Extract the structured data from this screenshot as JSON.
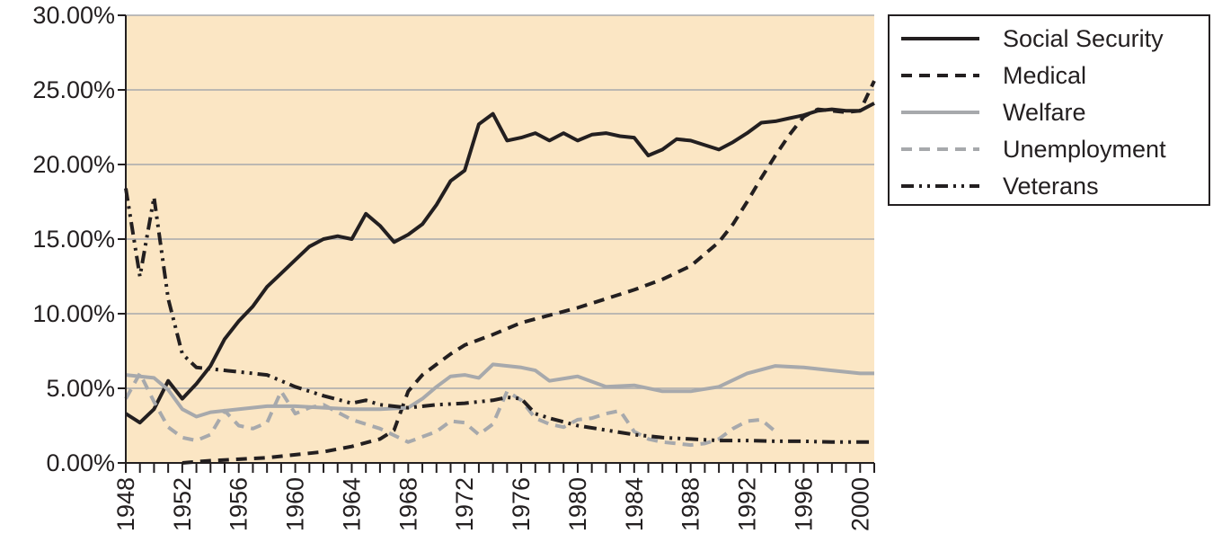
{
  "chart_data": {
    "type": "line",
    "title": "",
    "xlabel": "",
    "ylabel": "",
    "xlim": [
      1948,
      2001
    ],
    "ylim": [
      0,
      30
    ],
    "x_ticks": [
      1948,
      1952,
      1956,
      1960,
      1964,
      1968,
      1972,
      1976,
      1980,
      1984,
      1988,
      1992,
      1996,
      2000
    ],
    "y_ticks": [
      {
        "value": 0,
        "label": "0.00%"
      },
      {
        "value": 5,
        "label": "5.00%"
      },
      {
        "value": 10,
        "label": "10.00%"
      },
      {
        "value": 15,
        "label": "15.00%"
      },
      {
        "value": 20,
        "label": "20.00%"
      },
      {
        "value": 25,
        "label": "25.00%"
      },
      {
        "value": 30,
        "label": "30.00%"
      }
    ],
    "grid": "horizontal",
    "legend_position": "right",
    "plot_background": "#fbe6c4",
    "series": [
      {
        "name": "Social Security",
        "color": "#231f20",
        "style": "solid",
        "points": [
          [
            1948,
            3.3
          ],
          [
            1949,
            2.7
          ],
          [
            1950,
            3.6
          ],
          [
            1951,
            5.5
          ],
          [
            1952,
            4.3
          ],
          [
            1953,
            5.3
          ],
          [
            1954,
            6.5
          ],
          [
            1955,
            8.3
          ],
          [
            1956,
            9.5
          ],
          [
            1957,
            10.5
          ],
          [
            1958,
            11.8
          ],
          [
            1959,
            12.7
          ],
          [
            1960,
            13.6
          ],
          [
            1961,
            14.5
          ],
          [
            1962,
            15.0
          ],
          [
            1963,
            15.2
          ],
          [
            1964,
            15.0
          ],
          [
            1965,
            16.7
          ],
          [
            1966,
            15.9
          ],
          [
            1967,
            14.8
          ],
          [
            1968,
            15.3
          ],
          [
            1969,
            16.0
          ],
          [
            1970,
            17.3
          ],
          [
            1971,
            18.9
          ],
          [
            1972,
            19.6
          ],
          [
            1973,
            22.7
          ],
          [
            1974,
            23.4
          ],
          [
            1975,
            21.6
          ],
          [
            1976,
            21.8
          ],
          [
            1977,
            22.1
          ],
          [
            1978,
            21.6
          ],
          [
            1979,
            22.1
          ],
          [
            1980,
            21.6
          ],
          [
            1981,
            22.0
          ],
          [
            1982,
            22.1
          ],
          [
            1983,
            21.9
          ],
          [
            1984,
            21.8
          ],
          [
            1985,
            20.6
          ],
          [
            1986,
            21.0
          ],
          [
            1987,
            21.7
          ],
          [
            1988,
            21.6
          ],
          [
            1989,
            21.3
          ],
          [
            1990,
            21.0
          ],
          [
            1991,
            21.5
          ],
          [
            1992,
            22.1
          ],
          [
            1993,
            22.8
          ],
          [
            1994,
            22.9
          ],
          [
            1995,
            23.1
          ],
          [
            1996,
            23.3
          ],
          [
            1997,
            23.6
          ],
          [
            1998,
            23.7
          ],
          [
            1999,
            23.6
          ],
          [
            2000,
            23.6
          ],
          [
            2001,
            24.1
          ]
        ]
      },
      {
        "name": "Medical",
        "color": "#231f20",
        "style": "dashed",
        "points": [
          [
            1952,
            0.0
          ],
          [
            1954,
            0.15
          ],
          [
            1956,
            0.25
          ],
          [
            1958,
            0.35
          ],
          [
            1960,
            0.55
          ],
          [
            1962,
            0.75
          ],
          [
            1964,
            1.1
          ],
          [
            1966,
            1.6
          ],
          [
            1967,
            2.2
          ],
          [
            1968,
            4.8
          ],
          [
            1969,
            5.9
          ],
          [
            1970,
            6.6
          ],
          [
            1971,
            7.3
          ],
          [
            1972,
            7.9
          ],
          [
            1974,
            8.6
          ],
          [
            1976,
            9.4
          ],
          [
            1978,
            9.9
          ],
          [
            1980,
            10.4
          ],
          [
            1982,
            11.0
          ],
          [
            1984,
            11.6
          ],
          [
            1986,
            12.3
          ],
          [
            1988,
            13.2
          ],
          [
            1990,
            14.8
          ],
          [
            1991,
            16.0
          ],
          [
            1992,
            17.5
          ],
          [
            1993,
            19.1
          ],
          [
            1994,
            20.6
          ],
          [
            1995,
            22.0
          ],
          [
            1996,
            23.2
          ],
          [
            1997,
            23.7
          ],
          [
            1998,
            23.6
          ],
          [
            1999,
            23.5
          ],
          [
            2000,
            23.6
          ],
          [
            2001,
            25.6
          ]
        ]
      },
      {
        "name": "Welfare",
        "color": "#a7a9ac",
        "style": "solid",
        "points": [
          [
            1948,
            5.9
          ],
          [
            1950,
            5.7
          ],
          [
            1951,
            4.9
          ],
          [
            1952,
            3.6
          ],
          [
            1953,
            3.1
          ],
          [
            1954,
            3.4
          ],
          [
            1956,
            3.6
          ],
          [
            1958,
            3.8
          ],
          [
            1960,
            3.8
          ],
          [
            1962,
            3.7
          ],
          [
            1964,
            3.6
          ],
          [
            1966,
            3.6
          ],
          [
            1968,
            3.7
          ],
          [
            1969,
            4.3
          ],
          [
            1970,
            5.1
          ],
          [
            1971,
            5.8
          ],
          [
            1972,
            5.9
          ],
          [
            1973,
            5.7
          ],
          [
            1974,
            6.6
          ],
          [
            1976,
            6.4
          ],
          [
            1977,
            6.2
          ],
          [
            1978,
            5.5
          ],
          [
            1980,
            5.8
          ],
          [
            1982,
            5.1
          ],
          [
            1984,
            5.2
          ],
          [
            1986,
            4.8
          ],
          [
            1988,
            4.8
          ],
          [
            1990,
            5.1
          ],
          [
            1992,
            6.0
          ],
          [
            1994,
            6.5
          ],
          [
            1996,
            6.4
          ],
          [
            1998,
            6.2
          ],
          [
            2000,
            6.0
          ],
          [
            2001,
            6.0
          ]
        ]
      },
      {
        "name": "Unemployment",
        "color": "#a7a9ac",
        "style": "dashed",
        "points": [
          [
            1948,
            4.3
          ],
          [
            1949,
            6.0
          ],
          [
            1950,
            4.1
          ],
          [
            1951,
            2.4
          ],
          [
            1952,
            1.7
          ],
          [
            1953,
            1.5
          ],
          [
            1954,
            1.9
          ],
          [
            1955,
            3.5
          ],
          [
            1956,
            2.5
          ],
          [
            1957,
            2.3
          ],
          [
            1958,
            2.7
          ],
          [
            1959,
            4.8
          ],
          [
            1960,
            3.3
          ],
          [
            1961,
            3.7
          ],
          [
            1962,
            3.9
          ],
          [
            1964,
            2.9
          ],
          [
            1966,
            2.3
          ],
          [
            1968,
            1.4
          ],
          [
            1970,
            2.1
          ],
          [
            1971,
            2.8
          ],
          [
            1972,
            2.7
          ],
          [
            1973,
            1.9
          ],
          [
            1974,
            2.6
          ],
          [
            1975,
            4.8
          ],
          [
            1976,
            4.2
          ],
          [
            1977,
            3.0
          ],
          [
            1978,
            2.6
          ],
          [
            1979,
            2.4
          ],
          [
            1980,
            2.9
          ],
          [
            1981,
            3.0
          ],
          [
            1982,
            3.3
          ],
          [
            1983,
            3.5
          ],
          [
            1984,
            2.1
          ],
          [
            1985,
            1.6
          ],
          [
            1986,
            1.4
          ],
          [
            1987,
            1.3
          ],
          [
            1988,
            1.2
          ],
          [
            1989,
            1.3
          ],
          [
            1990,
            1.6
          ],
          [
            1991,
            2.3
          ],
          [
            1992,
            2.8
          ],
          [
            1993,
            2.9
          ],
          [
            1994,
            2.1
          ]
        ]
      },
      {
        "name": "Veterans",
        "color": "#231f20",
        "style": "dashdotdot",
        "points": [
          [
            1948,
            18.4
          ],
          [
            1949,
            12.5
          ],
          [
            1950,
            17.8
          ],
          [
            1951,
            11.0
          ],
          [
            1952,
            7.3
          ],
          [
            1953,
            6.4
          ],
          [
            1954,
            6.3
          ],
          [
            1956,
            6.1
          ],
          [
            1958,
            5.9
          ],
          [
            1960,
            5.1
          ],
          [
            1962,
            4.5
          ],
          [
            1964,
            4.0
          ],
          [
            1965,
            4.2
          ],
          [
            1966,
            3.9
          ],
          [
            1968,
            3.7
          ],
          [
            1970,
            3.9
          ],
          [
            1972,
            4.0
          ],
          [
            1974,
            4.2
          ],
          [
            1975,
            4.4
          ],
          [
            1976,
            4.3
          ],
          [
            1977,
            3.3
          ],
          [
            1978,
            3.0
          ],
          [
            1980,
            2.5
          ],
          [
            1982,
            2.2
          ],
          [
            1984,
            1.9
          ],
          [
            1986,
            1.7
          ],
          [
            1988,
            1.6
          ],
          [
            1990,
            1.5
          ],
          [
            1992,
            1.5
          ],
          [
            1994,
            1.45
          ],
          [
            1996,
            1.45
          ],
          [
            1998,
            1.4
          ],
          [
            2000,
            1.4
          ],
          [
            2001,
            1.4
          ]
        ]
      }
    ]
  }
}
